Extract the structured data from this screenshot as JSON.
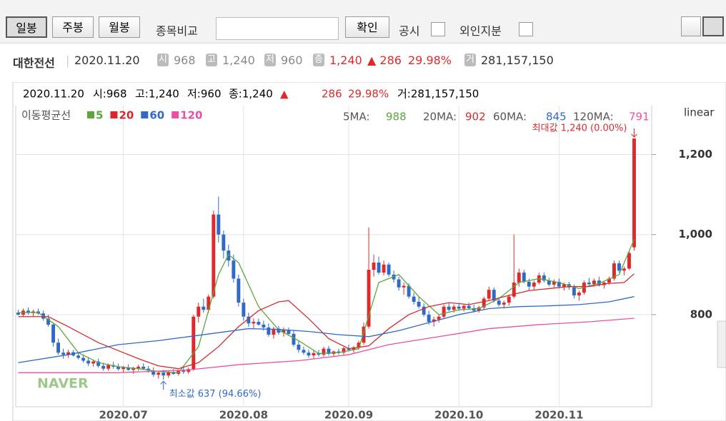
{
  "toolbar": {
    "buttons": [
      "일봉",
      "주봉",
      "월봉"
    ],
    "compare_label": "종목비교",
    "confirm": "확인",
    "checkboxes": [
      "공시",
      "외인지분"
    ]
  },
  "quote": {
    "name": "대한전선",
    "date": "2020.11.20",
    "open_badge": "시",
    "open": "968",
    "high_badge": "고",
    "high": "1,240",
    "low_badge": "저",
    "low": "960",
    "close_badge": "종",
    "close": "1,240",
    "change": "▲ 286",
    "pct": "29.98%",
    "volume_badge": "거",
    "volume": "281,157,150"
  },
  "chart_data": {
    "type": "candlestick",
    "info": {
      "date": "2020.11.20",
      "open": "시:968",
      "high": "고:1,240",
      "low": "저:960",
      "close": "종:1,240",
      "arrow": "▲",
      "change": "286",
      "pct": "29.98%",
      "volume": "거:281,157,150"
    },
    "ma_title": "이동평균선",
    "scale_label": "linear",
    "logo": "NAVER",
    "up_color": "#e0292b",
    "down_color": "#2f6ac8",
    "ylim": [
      570,
      1322
    ],
    "yticks": [
      {
        "value": 800,
        "label": "800"
      },
      {
        "value": 1000,
        "label": "1,000"
      },
      {
        "value": 1200,
        "label": "1,200"
      }
    ],
    "xlim": [
      -0.5,
      126.5
    ],
    "xticks": [
      {
        "value": 21,
        "label": "2020.07"
      },
      {
        "value": 45,
        "label": "2020.08"
      },
      {
        "value": 66,
        "label": "2020.09"
      },
      {
        "value": 88,
        "label": "2020.10"
      },
      {
        "value": 108,
        "label": "2020.11"
      }
    ],
    "max_label": "최대값 1,240 (0.00%)",
    "min_label": "최소값 637 (94.66%)",
    "ohlc": [
      [
        805,
        812,
        798,
        800
      ],
      [
        800,
        815,
        795,
        810
      ],
      [
        810,
        818,
        800,
        805
      ],
      [
        805,
        812,
        795,
        808
      ],
      [
        808,
        815,
        800,
        803
      ],
      [
        803,
        810,
        785,
        790
      ],
      [
        790,
        800,
        770,
        775
      ],
      [
        775,
        780,
        720,
        730
      ],
      [
        730,
        740,
        700,
        705
      ],
      [
        705,
        715,
        690,
        700
      ],
      [
        700,
        712,
        692,
        706
      ],
      [
        706,
        712,
        695,
        698
      ],
      [
        698,
        705,
        688,
        692
      ],
      [
        692,
        700,
        680,
        685
      ],
      [
        685,
        692,
        672,
        678
      ],
      [
        678,
        688,
        670,
        683
      ],
      [
        683,
        690,
        668,
        672
      ],
      [
        672,
        680,
        660,
        665
      ],
      [
        665,
        678,
        660,
        674
      ],
      [
        674,
        682,
        665,
        670
      ],
      [
        670,
        678,
        660,
        664
      ],
      [
        664,
        672,
        655,
        668
      ],
      [
        668,
        676,
        660,
        662
      ],
      [
        662,
        670,
        652,
        666
      ],
      [
        666,
        675,
        660,
        670
      ],
      [
        670,
        678,
        662,
        665
      ],
      [
        665,
        672,
        655,
        660
      ],
      [
        660,
        668,
        645,
        650
      ],
      [
        650,
        660,
        640,
        655
      ],
      [
        655,
        662,
        637,
        648
      ],
      [
        648,
        660,
        642,
        656
      ],
      [
        656,
        664,
        650,
        652
      ],
      [
        652,
        662,
        648,
        660
      ],
      [
        660,
        668,
        652,
        657
      ],
      [
        657,
        668,
        652,
        664
      ],
      [
        664,
        800,
        660,
        795
      ],
      [
        795,
        830,
        780,
        820
      ],
      [
        820,
        840,
        805,
        812
      ],
      [
        812,
        850,
        805,
        845
      ],
      [
        845,
        1060,
        840,
        1050
      ],
      [
        1050,
        1095,
        980,
        1000
      ],
      [
        1000,
        1010,
        940,
        960
      ],
      [
        960,
        975,
        920,
        935
      ],
      [
        935,
        950,
        880,
        890
      ],
      [
        890,
        900,
        820,
        830
      ],
      [
        830,
        840,
        785,
        795
      ],
      [
        795,
        805,
        770,
        778
      ],
      [
        778,
        790,
        765,
        782
      ],
      [
        782,
        790,
        772,
        775
      ],
      [
        775,
        785,
        760,
        768
      ],
      [
        768,
        778,
        745,
        750
      ],
      [
        750,
        770,
        740,
        765
      ],
      [
        765,
        772,
        750,
        755
      ],
      [
        755,
        768,
        745,
        762
      ],
      [
        762,
        768,
        748,
        752
      ],
      [
        752,
        760,
        720,
        725
      ],
      [
        725,
        735,
        705,
        712
      ],
      [
        712,
        720,
        700,
        705
      ],
      [
        705,
        712,
        692,
        698
      ],
      [
        698,
        710,
        690,
        704
      ],
      [
        704,
        712,
        695,
        700
      ],
      [
        700,
        720,
        695,
        715
      ],
      [
        715,
        722,
        698,
        702
      ],
      [
        702,
        710,
        695,
        708
      ],
      [
        708,
        715,
        700,
        705
      ],
      [
        705,
        720,
        700,
        716
      ],
      [
        716,
        725,
        708,
        712
      ],
      [
        712,
        722,
        705,
        718
      ],
      [
        718,
        735,
        712,
        730
      ],
      [
        730,
        780,
        725,
        770
      ],
      [
        770,
        1018,
        765,
        912
      ],
      [
        912,
        950,
        895,
        930
      ],
      [
        930,
        945,
        900,
        905
      ],
      [
        905,
        935,
        898,
        925
      ],
      [
        925,
        930,
        895,
        900
      ],
      [
        900,
        910,
        880,
        888
      ],
      [
        888,
        895,
        860,
        868
      ],
      [
        868,
        880,
        850,
        872
      ],
      [
        872,
        878,
        840,
        845
      ],
      [
        845,
        855,
        825,
        832
      ],
      [
        832,
        845,
        815,
        820
      ],
      [
        820,
        828,
        795,
        800
      ],
      [
        800,
        810,
        775,
        782
      ],
      [
        782,
        795,
        770,
        788
      ],
      [
        788,
        800,
        780,
        795
      ],
      [
        795,
        825,
        790,
        820
      ],
      [
        820,
        830,
        808,
        812
      ],
      [
        812,
        825,
        805,
        820
      ],
      [
        820,
        828,
        810,
        815
      ],
      [
        815,
        825,
        808,
        822
      ],
      [
        822,
        830,
        812,
        816
      ],
      [
        816,
        825,
        805,
        810
      ],
      [
        810,
        822,
        805,
        818
      ],
      [
        818,
        845,
        812,
        840
      ],
      [
        840,
        870,
        835,
        862
      ],
      [
        862,
        868,
        830,
        835
      ],
      [
        835,
        842,
        820,
        825
      ],
      [
        825,
        835,
        815,
        830
      ],
      [
        830,
        850,
        822,
        845
      ],
      [
        845,
        1000,
        840,
        880
      ],
      [
        880,
        915,
        870,
        905
      ],
      [
        905,
        912,
        878,
        882
      ],
      [
        882,
        890,
        860,
        870
      ],
      [
        870,
        885,
        862,
        880
      ],
      [
        880,
        905,
        875,
        898
      ],
      [
        898,
        905,
        880,
        885
      ],
      [
        885,
        892,
        870,
        875
      ],
      [
        875,
        888,
        868,
        882
      ],
      [
        882,
        890,
        865,
        870
      ],
      [
        870,
        880,
        860,
        876
      ],
      [
        876,
        882,
        862,
        868
      ],
      [
        868,
        875,
        840,
        848
      ],
      [
        848,
        860,
        835,
        855
      ],
      [
        855,
        885,
        850,
        880
      ],
      [
        880,
        892,
        872,
        876
      ],
      [
        876,
        890,
        870,
        885
      ],
      [
        885,
        895,
        870,
        874
      ],
      [
        874,
        885,
        865,
        880
      ],
      [
        880,
        895,
        875,
        890
      ],
      [
        890,
        935,
        885,
        928
      ],
      [
        928,
        935,
        905,
        910
      ],
      [
        910,
        920,
        898,
        915
      ],
      [
        915,
        960,
        912,
        954
      ],
      [
        968,
        1240,
        960,
        1240
      ]
    ],
    "series": [
      {
        "name": "5",
        "label": "5MA:",
        "last": "988",
        "color": "#5ba63d",
        "x": [
          0,
          4,
          8,
          12,
          16,
          20,
          24,
          28,
          32,
          36,
          40,
          42,
          44,
          48,
          52,
          56,
          60,
          64,
          68,
          72,
          76,
          80,
          84,
          88,
          92,
          96,
          100,
          104,
          108,
          112,
          116,
          120,
          123
        ],
        "values": [
          805,
          805,
          770,
          705,
          680,
          670,
          665,
          658,
          655,
          720,
          900,
          950,
          930,
          820,
          762,
          735,
          703,
          705,
          715,
          880,
          900,
          845,
          800,
          812,
          815,
          840,
          880,
          890,
          880,
          865,
          878,
          900,
          988
        ]
      },
      {
        "name": "20",
        "label": "20MA:",
        "last": "902",
        "color": "#d8282c",
        "x": [
          0,
          6,
          10,
          16,
          20,
          24,
          28,
          32,
          36,
          40,
          44,
          48,
          52,
          54,
          58,
          62,
          66,
          70,
          74,
          78,
          82,
          86,
          90,
          94,
          98,
          102,
          106,
          110,
          114,
          118,
          121,
          123
        ],
        "values": [
          795,
          795,
          770,
          730,
          710,
          690,
          672,
          665,
          680,
          720,
          770,
          810,
          832,
          835,
          790,
          740,
          715,
          722,
          765,
          800,
          820,
          830,
          825,
          835,
          848,
          860,
          865,
          870,
          870,
          878,
          880,
          902
        ]
      },
      {
        "name": "60",
        "label": "60MA:",
        "last": "845",
        "color": "#2f6ac8",
        "x": [
          0,
          10,
          20,
          28,
          34,
          40,
          46,
          52,
          58,
          64,
          70,
          76,
          82,
          88,
          94,
          100,
          106,
          112,
          118,
          123
        ],
        "values": [
          680,
          700,
          725,
          735,
          745,
          755,
          765,
          763,
          758,
          750,
          745,
          760,
          780,
          800,
          815,
          820,
          822,
          825,
          832,
          845
        ]
      },
      {
        "name": "120",
        "label": "120MA:",
        "last": "791",
        "color": "#ea4fa6",
        "x": [
          0,
          20,
          34,
          44,
          56,
          66,
          74,
          84,
          94,
          104,
          114,
          123
        ],
        "values": [
          655,
          655,
          662,
          675,
          685,
          700,
          725,
          745,
          765,
          775,
          782,
          791
        ]
      }
    ]
  }
}
